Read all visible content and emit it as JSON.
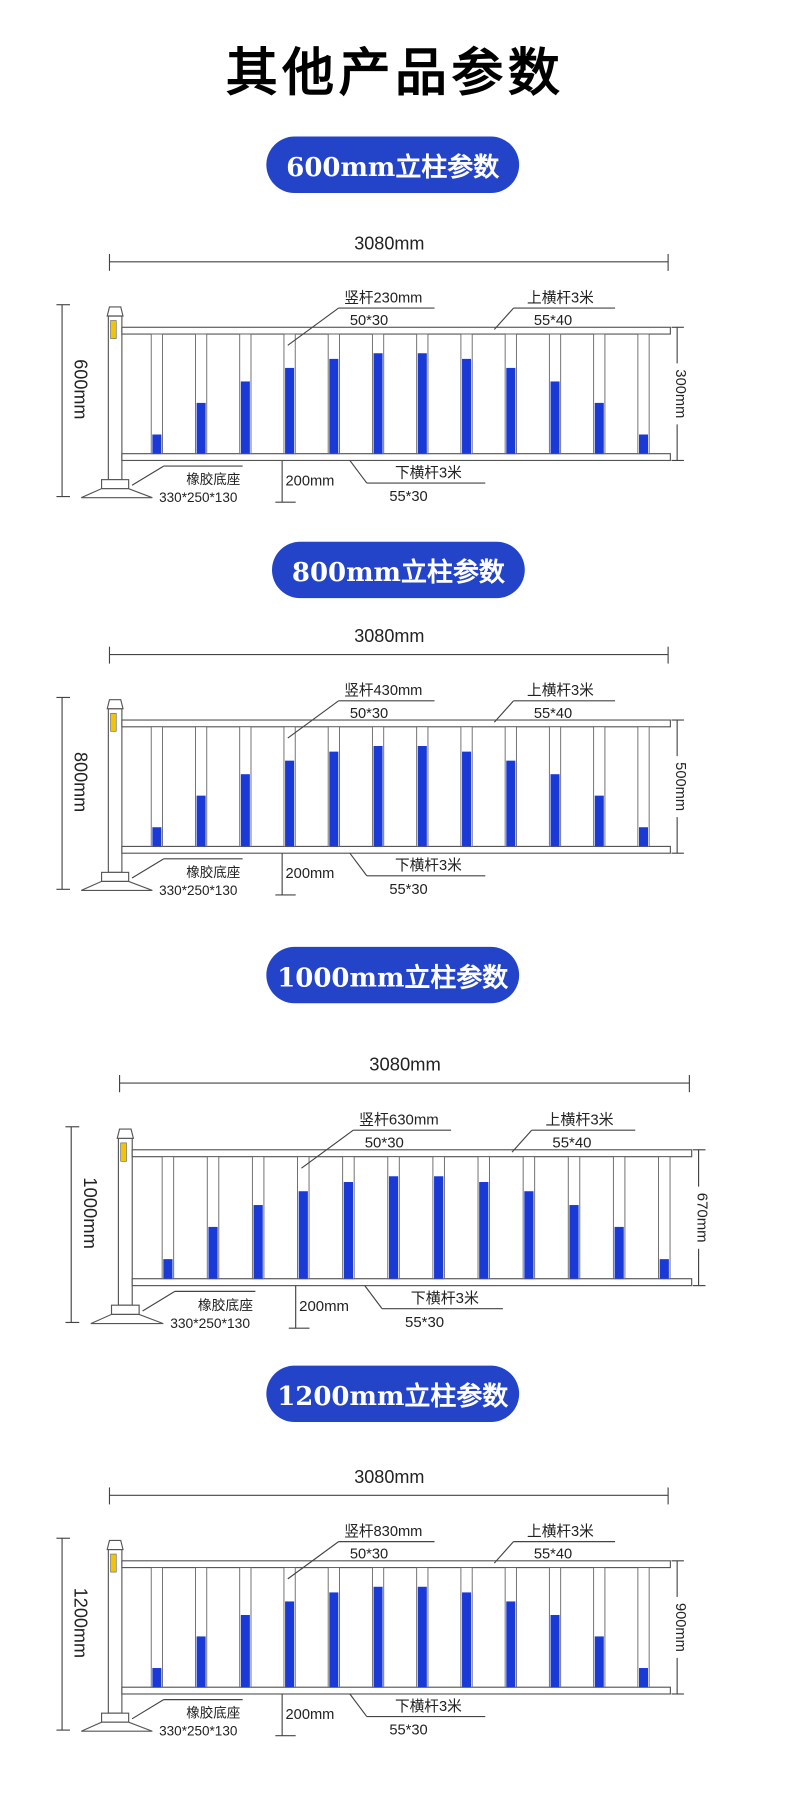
{
  "title": "其他产品参数",
  "colors": {
    "pill": "#2344c8",
    "bar_blue": "#1a3ad8",
    "reflector": "#f5c400"
  },
  "sections": [
    {
      "heading": "600mm立柱参数",
      "total_length": "3080mm",
      "post_height": "600mm",
      "bar_label": "竖杆230mm",
      "bar_size": "50*30",
      "top_rail": "上横杆3米",
      "top_rail_size": "55*40",
      "bottom_rail": "下横杆3米",
      "bottom_rail_size": "55*30",
      "clearance": "200mm",
      "base": "橡胶底座",
      "base_size": "330*250*130",
      "panel_height": "300mm"
    },
    {
      "heading": "800mm立柱参数",
      "total_length": "3080mm",
      "post_height": "800mm",
      "bar_label": "竖杆430mm",
      "bar_size": "50*30",
      "top_rail": "上横杆3米",
      "top_rail_size": "55*40",
      "bottom_rail": "下横杆3米",
      "bottom_rail_size": "55*30",
      "clearance": "200mm",
      "base": "橡胶底座",
      "base_size": "330*250*130",
      "panel_height": "500mm"
    },
    {
      "heading": "1000mm立柱参数",
      "total_length": "3080mm",
      "post_height": "1000mm",
      "bar_label": "竖杆630mm",
      "bar_size": "50*30",
      "top_rail": "上横杆3米",
      "top_rail_size": "55*40",
      "bottom_rail": "下横杆3米",
      "bottom_rail_size": "55*30",
      "clearance": "200mm",
      "base": "橡胶底座",
      "base_size": "330*250*130",
      "panel_height": "670mm"
    },
    {
      "heading": "1200mm立柱参数",
      "total_length": "3080mm",
      "post_height": "1200mm",
      "bar_label": "竖杆830mm",
      "bar_size": "50*30",
      "top_rail": "上横杆3米",
      "top_rail_size": "55*40",
      "bottom_rail": "下横杆3米",
      "bottom_rail_size": "55*30",
      "clearance": "200mm",
      "base": "橡胶底座",
      "base_size": "330*250*130",
      "panel_height": "900mm"
    }
  ]
}
